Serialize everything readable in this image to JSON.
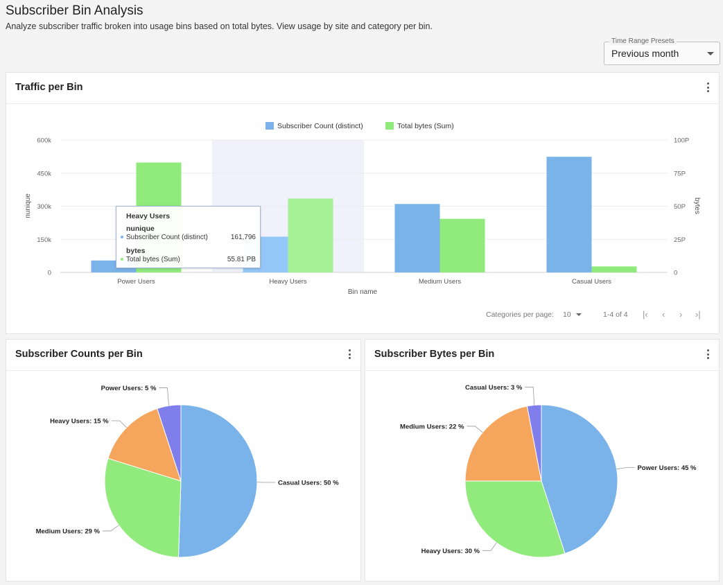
{
  "page": {
    "title": "Subscriber Bin Analysis",
    "description": "Analyze subscriber traffic broken into usage bins based on total bytes. View usage by site and category per bin."
  },
  "time_preset": {
    "label": "Time Range Presets",
    "value": "Previous month"
  },
  "traffic_card": {
    "title": "Traffic per Bin",
    "tooltip": {
      "title": "Heavy Users",
      "group1": "nunique",
      "row1_label": "Subscriber Count (distinct)",
      "row1_value": "161,796",
      "group2": "bytes",
      "row2_label": "Total bytes (Sum)",
      "row2_value": "55.81 PB"
    },
    "pager": {
      "per_page_label": "Categories per page:",
      "per_page_value": "10",
      "range": "1-4 of 4"
    }
  },
  "counts_card": {
    "title": "Subscriber Counts per Bin"
  },
  "bytes_card": {
    "title": "Subscriber Bytes per Bin"
  },
  "colors": {
    "blue": "#7ab3ea",
    "green": "#90ea7c",
    "orange": "#f5a55c",
    "purple": "#7f7eea",
    "highlight": "#f0f1fa"
  },
  "chart_data": [
    {
      "type": "bar",
      "categories": [
        "Power Users",
        "Heavy Users",
        "Medium Users",
        "Casual Users"
      ],
      "series": [
        {
          "name": "Subscriber Count (distinct)",
          "axis": "left",
          "values": [
            54000,
            161796,
            310000,
            524000
          ]
        },
        {
          "name": "Total bytes (Sum)",
          "axis": "right",
          "values": [
            83,
            55.81,
            40.5,
            4.5
          ]
        }
      ],
      "xlabel": "Bin name",
      "ylabel": "nunique",
      "y2label": "bytes",
      "ylim": [
        0,
        600000
      ],
      "y2lim": [
        0,
        100
      ],
      "yticks": [
        "0",
        "150k",
        "300k",
        "450k",
        "600k"
      ],
      "y2ticks": [
        "0",
        "25P",
        "50P",
        "75P",
        "100P"
      ],
      "legend": "top-center",
      "grid": true,
      "highlighted_category": "Heavy Users"
    },
    {
      "type": "pie",
      "slices": [
        {
          "label": "Casual Users",
          "value": 50,
          "display": "Casual Users: 50 %",
          "color": "blue"
        },
        {
          "label": "Medium Users",
          "value": 29,
          "display": "Medium Users: 29 %",
          "color": "green"
        },
        {
          "label": "Heavy Users",
          "value": 15,
          "display": "Heavy Users: 15 %",
          "color": "orange"
        },
        {
          "label": "Power Users",
          "value": 5,
          "display": "Power Users: 5 %",
          "color": "purple"
        }
      ]
    },
    {
      "type": "pie",
      "slices": [
        {
          "label": "Power Users",
          "value": 45,
          "display": "Power Users: 45 %",
          "color": "blue"
        },
        {
          "label": "Heavy Users",
          "value": 30,
          "display": "Heavy Users: 30 %",
          "color": "green"
        },
        {
          "label": "Medium Users",
          "value": 22,
          "display": "Medium Users: 22 %",
          "color": "orange"
        },
        {
          "label": "Casual Users",
          "value": 3,
          "display": "Casual Users: 3 %",
          "color": "purple"
        }
      ]
    }
  ]
}
